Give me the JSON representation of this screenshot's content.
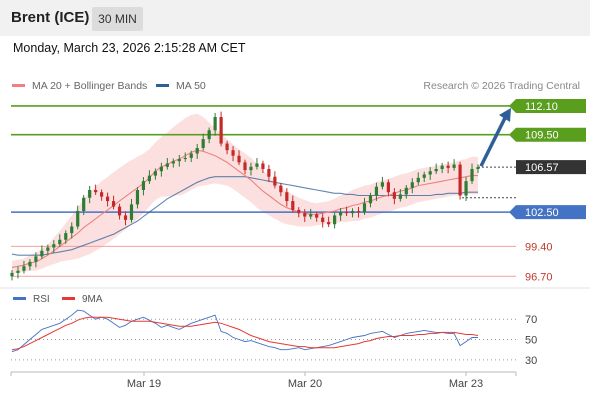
{
  "header": {
    "title": "Brent (ICE)",
    "timeframe": "30 MIN"
  },
  "timestamp": "Monday, March 23, 2026 2:15:28 AM CET",
  "legend": {
    "items": [
      {
        "label": "MA 20 + Bollinger Bands",
        "color": "#f08080"
      },
      {
        "label": "MA 50",
        "color": "#2e5f99"
      }
    ],
    "credit": "Research © 2026 Trading Central"
  },
  "colors": {
    "resistance": "#5a9e1d",
    "pivot": "#4472c4",
    "support": "#f0a0a0",
    "last_price": "#333333",
    "arrow": "#2e5f99",
    "candle_up": "#2e7d32",
    "candle_down": "#c62828",
    "rsi": "#4472c4",
    "rsi_ma": "#e53935"
  },
  "chart_data": [
    {
      "type": "candlestick",
      "title": "Brent (ICE)",
      "timeframe": "30 MIN",
      "ylim": [
        96.0,
        113.0
      ],
      "x_ticks": [
        "Mar 19",
        "Mar 20",
        "Mar 23"
      ],
      "levels": [
        {
          "value": 112.1,
          "label": "112.10",
          "kind": "resistance"
        },
        {
          "value": 109.5,
          "label": "109.50",
          "kind": "resistance"
        },
        {
          "value": 106.57,
          "label": "106.57",
          "kind": "last"
        },
        {
          "value": 102.5,
          "label": "102.50",
          "kind": "pivot"
        },
        {
          "value": 99.4,
          "label": "99.40",
          "kind": "support"
        },
        {
          "value": 96.7,
          "label": "96.70",
          "kind": "support"
        }
      ],
      "arrow_target": 112.1,
      "close_series": [
        97.0,
        97.2,
        97.6,
        98.0,
        98.5,
        99.0,
        99.3,
        99.6,
        100.0,
        100.6,
        101.2,
        102.6,
        103.8,
        104.5,
        104.3,
        103.9,
        103.5,
        103.0,
        102.2,
        101.8,
        103.2,
        104.5,
        105.3,
        105.8,
        106.2,
        106.6,
        106.9,
        107.1,
        107.3,
        107.4,
        107.8,
        108.3,
        109.1,
        109.9,
        111.1,
        108.7,
        108.1,
        107.6,
        107.0,
        106.3,
        106.6,
        106.9,
        106.4,
        105.7,
        104.9,
        104.3,
        103.5,
        102.7,
        102.4,
        102.1,
        102.3,
        102.0,
        101.6,
        101.4,
        102.2,
        102.5,
        102.4,
        102.6,
        102.5,
        103.3,
        104.0,
        104.8,
        105.2,
        104.3,
        103.7,
        104.1,
        104.7,
        105.2,
        105.6,
        105.9,
        106.2,
        106.4,
        106.7,
        106.5,
        106.8,
        104.0,
        105.3,
        106.4,
        106.57
      ],
      "ma20": [
        97.5,
        97.6,
        97.7,
        97.9,
        98.0,
        98.3,
        98.6,
        99.0,
        99.4,
        99.8,
        100.2,
        100.6,
        101.1,
        101.5,
        101.9,
        102.3,
        102.7,
        103.1,
        103.5,
        103.9,
        104.3,
        104.7,
        105.1,
        105.6,
        106.2,
        106.6,
        106.8,
        107.1,
        107.3,
        107.6,
        107.9,
        108.1,
        108.0,
        107.8,
        107.6,
        107.3,
        107.0,
        106.6,
        106.2,
        105.8,
        105.4,
        104.9,
        104.4,
        104.0,
        103.6,
        103.2,
        102.9,
        102.7,
        102.5,
        102.4,
        102.3,
        102.3,
        102.4,
        102.5,
        102.6,
        102.8,
        102.9,
        103.1,
        103.2,
        103.4,
        103.5,
        103.7,
        103.9,
        104.0,
        104.2,
        104.4,
        104.5,
        104.7,
        104.9,
        105.0,
        105.1,
        105.2,
        105.3,
        105.4,
        105.5,
        105.6,
        105.7,
        105.8,
        105.8
      ],
      "ma50": [
        98.7,
        98.6,
        98.6,
        98.6,
        98.6,
        98.6,
        98.7,
        98.8,
        98.9,
        99.0,
        99.1,
        99.3,
        99.5,
        99.7,
        99.9,
        100.1,
        100.3,
        100.5,
        100.8,
        101.1,
        101.4,
        101.7,
        102.1,
        102.5,
        102.9,
        103.3,
        103.7,
        104.0,
        104.3,
        104.6,
        104.9,
        105.2,
        105.4,
        105.6,
        105.7,
        105.7,
        105.7,
        105.7,
        105.7,
        105.7,
        105.6,
        105.5,
        105.4,
        105.3,
        105.2,
        105.1,
        105.0,
        104.9,
        104.8,
        104.7,
        104.6,
        104.5,
        104.4,
        104.3,
        104.2,
        104.2,
        104.1,
        104.1,
        104.0,
        104.0,
        104.0,
        104.0,
        104.0,
        104.0,
        104.0,
        104.0,
        104.0,
        104.0,
        104.0,
        104.0,
        104.0,
        104.1,
        104.1,
        104.2,
        104.2,
        104.2,
        104.3,
        104.3,
        104.3
      ],
      "band_halfwidth": [
        0.6,
        0.6,
        0.6,
        0.7,
        0.8,
        0.9,
        1.0,
        1.2,
        1.4,
        1.7,
        2.0,
        2.3,
        2.6,
        2.8,
        2.9,
        3.0,
        3.0,
        3.0,
        3.0,
        3.0,
        2.9,
        2.8,
        2.7,
        2.6,
        2.6,
        2.7,
        2.9,
        3.1,
        3.3,
        3.4,
        3.4,
        3.3,
        3.1,
        2.8,
        2.5,
        2.3,
        2.1,
        2.0,
        2.0,
        2.0,
        2.0,
        2.0,
        1.9,
        1.8,
        1.7,
        1.6,
        1.5,
        1.4,
        1.3,
        1.2,
        1.1,
        1.0,
        1.0,
        1.0,
        1.1,
        1.2,
        1.3,
        1.4,
        1.5,
        1.5,
        1.5,
        1.5,
        1.5,
        1.5,
        1.5,
        1.5,
        1.5,
        1.5,
        1.5,
        1.5,
        1.5,
        1.5,
        1.5,
        1.5,
        1.5,
        1.6,
        1.6,
        1.7,
        1.7
      ]
    },
    {
      "type": "line",
      "title": "RSI",
      "series": [
        {
          "name": "RSI",
          "values": [
            38,
            40,
            45,
            50,
            55,
            60,
            62,
            64,
            66,
            70,
            74,
            79,
            78,
            74,
            70,
            72,
            70,
            66,
            62,
            64,
            68,
            70,
            72,
            69,
            66,
            62,
            64,
            62,
            60,
            63,
            66,
            68,
            70,
            72,
            74,
            58,
            56,
            52,
            50,
            48,
            49,
            47,
            45,
            43,
            42,
            40,
            40,
            41,
            42,
            40,
            41,
            42,
            43,
            44,
            46,
            48,
            50,
            52,
            53,
            54,
            56,
            57,
            58,
            55,
            52,
            54,
            56,
            57,
            58,
            59,
            58,
            57,
            57,
            56,
            56,
            44,
            48,
            52,
            52
          ]
        },
        {
          "name": "9MA",
          "values": [
            40,
            41,
            43,
            46,
            49,
            52,
            55,
            58,
            61,
            64,
            66,
            69,
            71,
            72,
            72,
            72,
            72,
            71,
            70,
            69,
            68,
            68,
            68,
            68,
            67,
            66,
            65,
            64,
            63,
            63,
            63,
            64,
            65,
            66,
            67,
            66,
            64,
            62,
            60,
            57,
            54,
            52,
            50,
            48,
            47,
            46,
            45,
            44,
            43,
            43,
            42,
            42,
            42,
            42,
            42,
            43,
            44,
            45,
            46,
            48,
            49,
            51,
            52,
            53,
            53,
            54,
            54,
            54,
            55,
            55,
            56,
            56,
            57,
            57,
            57,
            56,
            55,
            55,
            54
          ]
        }
      ],
      "ylim": [
        20,
        85
      ],
      "levels": [
        70,
        50,
        30
      ],
      "y_tick_labels": [
        "70",
        "50",
        "30"
      ]
    }
  ]
}
